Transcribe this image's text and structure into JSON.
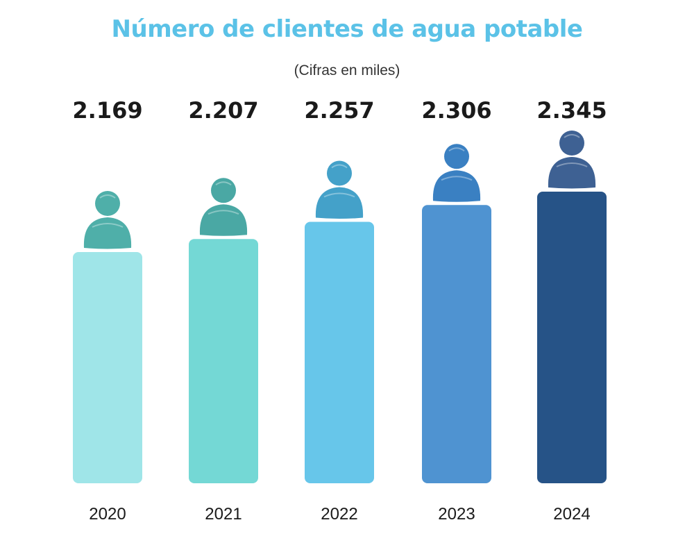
{
  "chart_data": {
    "type": "bar",
    "title": "Número de clientes de agua potable",
    "subtitle": "(Cifras en miles)",
    "categories": [
      "2020",
      "2021",
      "2022",
      "2023",
      "2024"
    ],
    "values": [
      2169,
      2207,
      2257,
      2306,
      2345
    ],
    "value_labels": [
      "2.169",
      "2.207",
      "2.257",
      "2.306",
      "2.345"
    ],
    "xlabel": "",
    "ylabel": "",
    "grid": false,
    "legend": "none",
    "bar_colors": [
      "#9fe5e8",
      "#74d8d5",
      "#67c6ea",
      "#4f93d1",
      "#265387"
    ],
    "icon_colors": [
      "#4fafa9",
      "#4aa8a4",
      "#44a1c9",
      "#3a80c2",
      "#3e6193"
    ],
    "icon_name": "person-icon"
  }
}
